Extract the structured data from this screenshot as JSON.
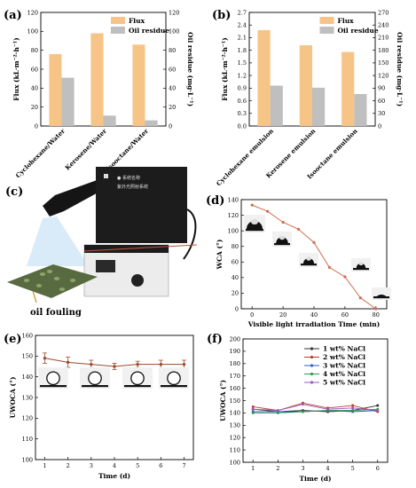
{
  "colors": {
    "flux": "#f7c487",
    "residue": "#bfbfbf",
    "wca_line": "#cd6f4e",
    "uwoca_line": "#9c4a2c",
    "series_f": [
      "#333333",
      "#c0392b",
      "#2f5dbd",
      "#2e9a55",
      "#9b59b6"
    ]
  },
  "panels": [
    {
      "label": "(a)",
      "chart_data": {
        "type": "bar",
        "categories": [
          "Cyclohexane/Water",
          "Kerosene/Water",
          "Isooctane/Water"
        ],
        "series": [
          {
            "name": "Flux",
            "axis": "left",
            "values": [
              76,
              98,
              86
            ]
          },
          {
            "name": "Oil residue",
            "axis": "right",
            "values": [
              51,
              11,
              6
            ]
          }
        ],
        "ylabel": "Flux (kL·m⁻²·h⁻¹)",
        "ylabel_right": "Oil residue (mg·L⁻¹)",
        "ylim": [
          0,
          120
        ],
        "ylim_right": [
          0,
          120
        ],
        "yticks": [
          0,
          20,
          40,
          60,
          80,
          100,
          120
        ],
        "yticks_right": [
          0,
          20,
          40,
          60,
          80,
          100,
          120
        ],
        "legend": "top-right"
      }
    },
    {
      "label": "(b)",
      "chart_data": {
        "type": "bar",
        "categories": [
          "Cyclohexane emulsion",
          "Kerosene emulsion",
          "Isooctane emulsion"
        ],
        "series": [
          {
            "name": "Flux",
            "axis": "left",
            "values": [
              2.28,
              1.92,
              1.76
            ]
          },
          {
            "name": "Oil residue",
            "axis": "right",
            "values": [
              96,
              91,
              76
            ]
          }
        ],
        "ylabel": "Flux (kL·m⁻²·h⁻¹)",
        "ylabel_right": "Oil residue (mg·L⁻¹)",
        "ylim": [
          0,
          2.7
        ],
        "ylim_right": [
          0,
          270
        ],
        "yticks": [
          "0.0",
          "0.3",
          "0.6",
          "0.9",
          "1.2",
          "1.5",
          "1.8",
          "2.1",
          "2.4",
          "2.7"
        ],
        "yticks_right": [
          "0",
          "30",
          "60",
          "90",
          "120",
          "150",
          "180",
          "210",
          "240",
          "270"
        ],
        "legend": "top-right"
      }
    },
    {
      "label": "(c)",
      "caption": "oil fouling",
      "device_text": [
        "● 系统名称",
        "紫外光照射系统"
      ],
      "icons": [
        "light-device-icon",
        "fouled-membrane-icon"
      ]
    },
    {
      "label": "(d)",
      "chart_data": {
        "type": "line",
        "x": [
          0,
          10,
          20,
          30,
          40,
          50,
          60,
          70,
          80
        ],
        "values": [
          133,
          125,
          111,
          102,
          85,
          53,
          41,
          14,
          0
        ],
        "xlabel": "Visible light irradiation Time (min)",
        "ylabel": "WCA (°)",
        "xlim": [
          -7,
          87
        ],
        "ylim": [
          0,
          140
        ],
        "xticks": [
          0,
          20,
          40,
          60,
          80
        ],
        "yticks": [
          0,
          20,
          40,
          60,
          80,
          100,
          120,
          140
        ],
        "droplet_insets": 5
      }
    },
    {
      "label": "(e)",
      "chart_data": {
        "type": "line",
        "x": [
          1,
          2,
          3,
          4,
          5,
          6,
          7
        ],
        "values": [
          149,
          147,
          146,
          145,
          146,
          146,
          146
        ],
        "errors": [
          2.5,
          2.5,
          2,
          1.5,
          1.5,
          2,
          2
        ],
        "xlabel": "Time (d)",
        "ylabel": "UWOCA (°)",
        "xlim": [
          0.6,
          7.4
        ],
        "ylim": [
          100,
          160
        ],
        "xticks": [
          1,
          2,
          3,
          4,
          5,
          6,
          7
        ],
        "yticks": [
          100,
          110,
          120,
          130,
          140,
          150,
          160
        ],
        "droplet_insets": 4
      }
    },
    {
      "label": "(f)",
      "chart_data": {
        "type": "line",
        "x": [
          1,
          2,
          3,
          4,
          5,
          6
        ],
        "series": [
          {
            "name": "1 wt% NaCl",
            "values": [
              143,
              141,
              142,
              141,
              142,
              146
            ]
          },
          {
            "name": "2 wt% NaCl",
            "values": [
              145,
              142,
              148,
              144,
              146,
              141
            ]
          },
          {
            "name": "3 wt% NaCl",
            "values": [
              141,
              141,
              141,
              142,
              141,
              142
            ]
          },
          {
            "name": "4 wt% NaCl",
            "values": [
              140,
              140,
              141,
              142,
              142,
              143
            ]
          },
          {
            "name": "5 wt% NaCl",
            "values": [
              143,
              142,
              147,
              143,
              144,
              142
            ]
          }
        ],
        "xlabel": "Time (d)",
        "ylabel": "UWOCA (°)",
        "xlim": [
          0.6,
          6.4
        ],
        "ylim": [
          100,
          200
        ],
        "xticks": [
          1,
          2,
          3,
          4,
          5,
          6
        ],
        "yticks": [
          100,
          110,
          120,
          130,
          140,
          150,
          160,
          170,
          180,
          190,
          200
        ],
        "legend": "top-right"
      }
    }
  ]
}
